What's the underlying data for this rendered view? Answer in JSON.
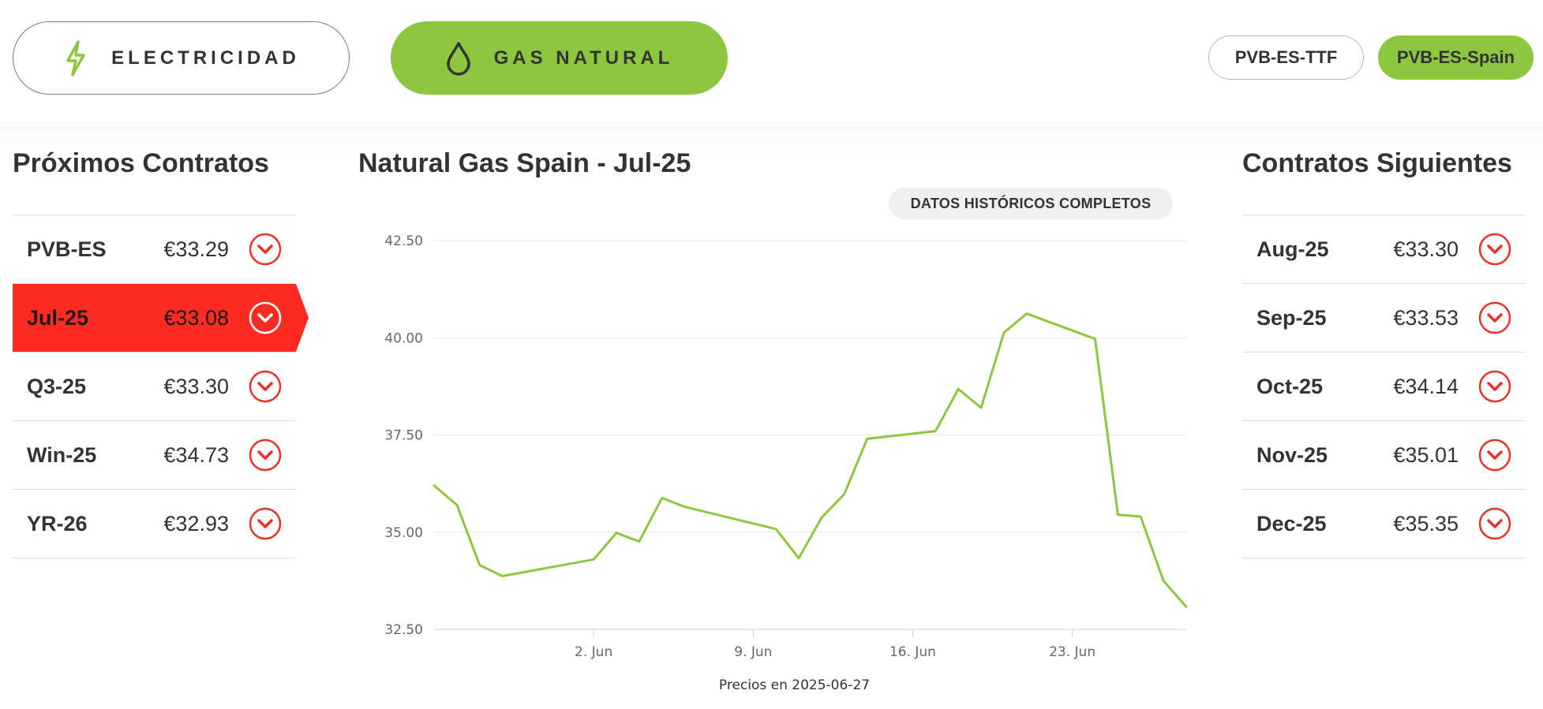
{
  "tabs": {
    "electricity": {
      "label": "ELECTRICIDAD",
      "icon": "lightning-bolt-icon"
    },
    "gas": {
      "label": "GAS NATURAL",
      "icon": "water-drop-icon",
      "active": true
    }
  },
  "hubs": [
    {
      "label": "PVB-ES-TTF",
      "active": false
    },
    {
      "label": "PVB-ES-Spain",
      "active": true
    }
  ],
  "left_panel": {
    "title": "Próximos Contratos",
    "items": [
      {
        "name": "PVB-ES",
        "price": "€33.29"
      },
      {
        "name": "Jul-25",
        "price": "€33.08",
        "active": true
      },
      {
        "name": "Q3-25",
        "price": "€33.30"
      },
      {
        "name": "Win-25",
        "price": "€34.73"
      },
      {
        "name": "YR-26",
        "price": "€32.93"
      }
    ]
  },
  "right_panel": {
    "title": "Contratos Siguientes",
    "items": [
      {
        "name": "Aug-25",
        "price": "€33.30"
      },
      {
        "name": "Sep-25",
        "price": "€33.53"
      },
      {
        "name": "Oct-25",
        "price": "€34.14"
      },
      {
        "name": "Nov-25",
        "price": "€35.01"
      },
      {
        "name": "Dec-25",
        "price": "€35.35"
      }
    ]
  },
  "chart_title": "Natural Gas Spain - Jul-25",
  "history_button": "DATOS HISTÓRICOS COMPLETOS",
  "colors": {
    "accent_green": "#8dc63f",
    "active_red": "#ff2a22"
  },
  "chart_data": {
    "type": "line",
    "x": [
      "2025-05-26",
      "2025-05-27",
      "2025-05-28",
      "2025-05-29",
      "2025-06-02",
      "2025-06-03",
      "2025-06-04",
      "2025-06-05",
      "2025-06-06",
      "2025-06-10",
      "2025-06-11",
      "2025-06-12",
      "2025-06-13",
      "2025-06-14",
      "2025-06-17",
      "2025-06-18",
      "2025-06-19",
      "2025-06-20",
      "2025-06-21",
      "2025-06-24",
      "2025-06-25",
      "2025-06-26",
      "2025-06-27",
      "2025-06-28"
    ],
    "series": [
      {
        "color": "#8dc63f",
        "values": [
          36.2,
          35.7,
          34.15,
          33.87,
          34.3,
          34.98,
          34.76,
          35.88,
          35.65,
          35.08,
          34.33,
          35.37,
          35.98,
          37.4,
          37.6,
          38.68,
          38.2,
          40.13,
          40.62,
          39.97,
          35.45,
          35.4,
          33.75,
          33.08
        ]
      }
    ],
    "xlabel": "",
    "ylabel": "",
    "ylim": [
      32.5,
      42.5
    ],
    "yticks": [
      "32.50",
      "35.00",
      "37.50",
      "40.00",
      "42.50"
    ],
    "xticks": [
      {
        "date": "2025-06-02",
        "label": "2. Jun"
      },
      {
        "date": "2025-06-09",
        "label": "9. Jun"
      },
      {
        "date": "2025-06-16",
        "label": "16. Jun"
      },
      {
        "date": "2025-06-23",
        "label": "23. Jun"
      }
    ],
    "caption": "Precios en 2025-06-27",
    "grid": true
  }
}
